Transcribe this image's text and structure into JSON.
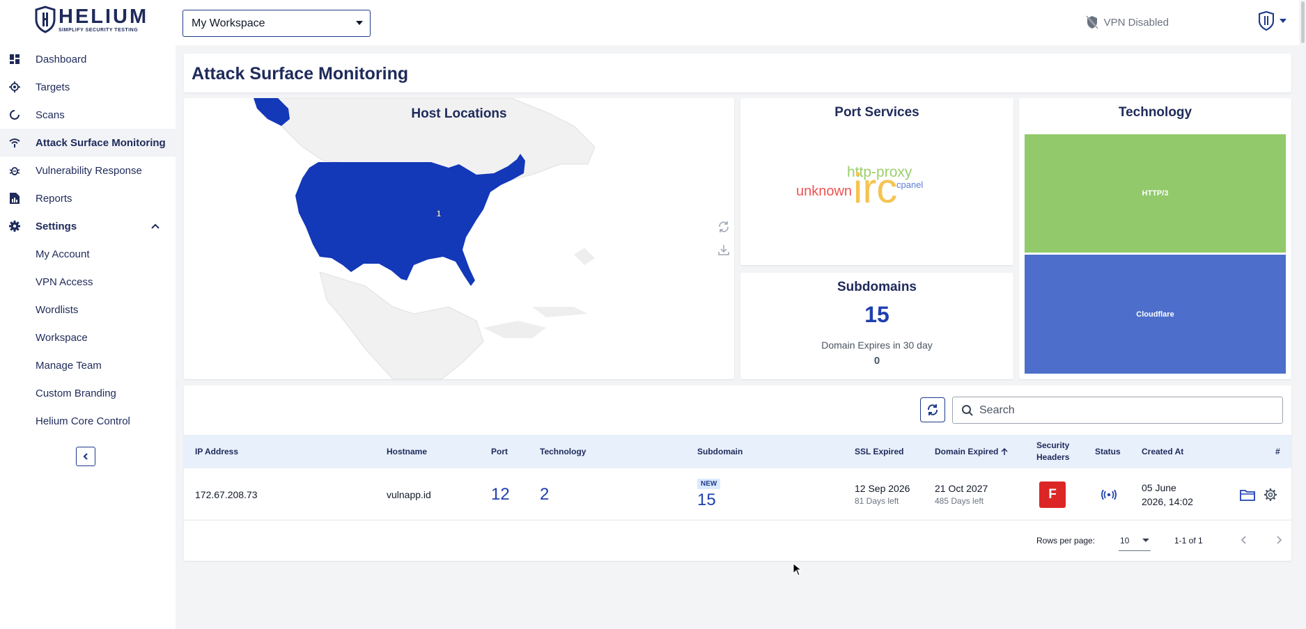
{
  "brand": {
    "name": "HELIUM",
    "tagline": "SIMPLIFY SECURITY TESTING"
  },
  "sidebar": {
    "items": [
      {
        "label": "Dashboard",
        "icon": "dashboard-icon"
      },
      {
        "label": "Targets",
        "icon": "target-icon"
      },
      {
        "label": "Scans",
        "icon": "scan-icon"
      },
      {
        "label": "Attack Surface Monitoring",
        "icon": "attack-surface-icon",
        "active": true
      },
      {
        "label": "Vulnerability Response",
        "icon": "bug-icon"
      },
      {
        "label": "Reports",
        "icon": "report-icon"
      }
    ],
    "settings": {
      "label": "Settings",
      "sub_items": [
        "My Account",
        "VPN Access",
        "Wordlists",
        "Workspace",
        "Manage Team",
        "Custom Branding",
        "Helium Core Control"
      ]
    }
  },
  "topbar": {
    "workspace": "My Workspace",
    "vpn_status": "VPN Disabled"
  },
  "page": {
    "title": "Attack Surface Monitoring"
  },
  "host_locations": {
    "title": "Host Locations",
    "map_marker_label": "1",
    "highlight_color": "#1338b8"
  },
  "port_services": {
    "title": "Port Services",
    "words": [
      {
        "text": "http-proxy",
        "color": "#9bcf6b"
      },
      {
        "text": "unknown",
        "color": "#ef5350"
      },
      {
        "text": "irc",
        "color": "#f5c451"
      },
      {
        "text": "cpanel",
        "color": "#5c7cd6"
      }
    ]
  },
  "subdomains": {
    "title": "Subdomains",
    "count": "15",
    "expires_label": "Domain Expires in 30 day",
    "expires_value": "0"
  },
  "technology": {
    "title": "Technology",
    "items": [
      {
        "label": "HTTP/3",
        "color": "#92c96b"
      },
      {
        "label": "Cloudflare",
        "color": "#4d6fcb"
      }
    ]
  },
  "table": {
    "search_placeholder": "Search",
    "columns": [
      "IP Address",
      "Hostname",
      "Port",
      "Technology",
      "Subdomain",
      "SSL Expired",
      "Domain Expired",
      "Security",
      "Headers",
      "Status",
      "Created At",
      "#"
    ],
    "rows": [
      {
        "ip": "172.67.208.73",
        "hostname": "vulnapp.id",
        "port": "12",
        "technology": "2",
        "subdomain_badge": "NEW",
        "subdomain": "15",
        "ssl_date": "12 Sep 2026",
        "ssl_left": "81 Days left",
        "domain_date": "21 Oct 2027",
        "domain_left": "485 Days left",
        "security_grade": "F",
        "created_line1": "05 June",
        "created_line2": "2026, 14:02"
      }
    ],
    "rows_per_page_label": "Rows per page:",
    "rows_per_page": "10",
    "range": "1-1 of 1"
  }
}
